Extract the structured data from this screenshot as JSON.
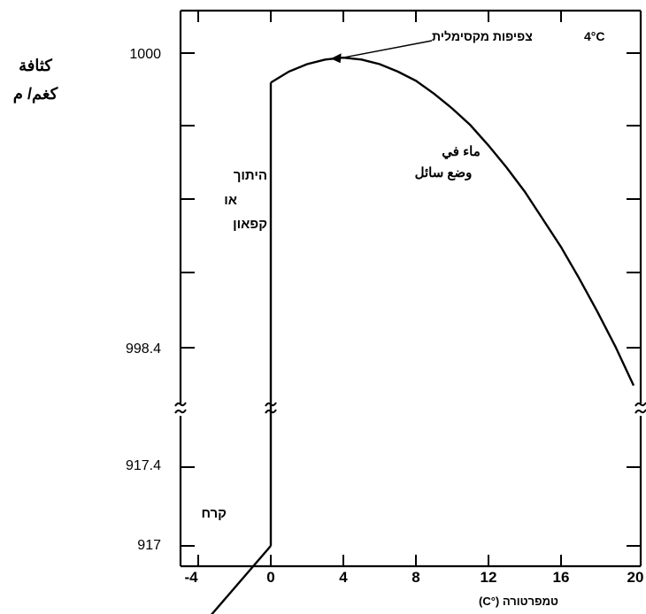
{
  "chart_data": {
    "type": "line",
    "title": "",
    "ylabel_lines": [
      "كثافة",
      "كغم/ م"
    ],
    "xlabel": "טמפרטורה  (°C)",
    "x_ticks": [
      "-4",
      "0",
      "4",
      "8",
      "12",
      "16",
      "20"
    ],
    "y_upper_ticks": [
      "1000",
      "998.4"
    ],
    "y_lower_ticks": [
      "917.4",
      "917"
    ],
    "xlim": [
      -4,
      20
    ],
    "axis_break": "between 998.4 and 917.4",
    "series": [
      {
        "phase": "ice",
        "points": [
          [
            -4.4,
            917.47
          ],
          [
            0,
            917.0
          ]
        ]
      },
      {
        "phase": "liquid water",
        "points": [
          [
            0,
            999.84
          ],
          [
            1,
            999.9
          ],
          [
            2,
            999.94
          ],
          [
            3,
            999.965
          ],
          [
            4,
            999.975
          ],
          [
            5,
            999.965
          ],
          [
            6,
            999.94
          ],
          [
            7,
            999.9
          ],
          [
            8,
            999.85
          ],
          [
            9,
            999.78
          ],
          [
            10,
            999.7
          ],
          [
            11,
            999.61
          ],
          [
            12,
            999.5
          ],
          [
            13,
            999.38
          ],
          [
            14,
            999.25
          ],
          [
            15,
            999.1
          ],
          [
            16,
            998.95
          ],
          [
            17,
            998.78
          ],
          [
            18,
            998.6
          ],
          [
            19,
            998.41
          ],
          [
            20,
            998.2
          ]
        ]
      }
    ],
    "annotations": {
      "max_density": "צפיפות מקסימלית",
      "max_density_temp": "4°C",
      "liquid_line1": "ماء في",
      "liquid_line2": "وضع سائل",
      "melt_line1": "היתוך",
      "melt_line2": "או",
      "melt_line3": "קפאון",
      "ice": "קרח"
    }
  }
}
